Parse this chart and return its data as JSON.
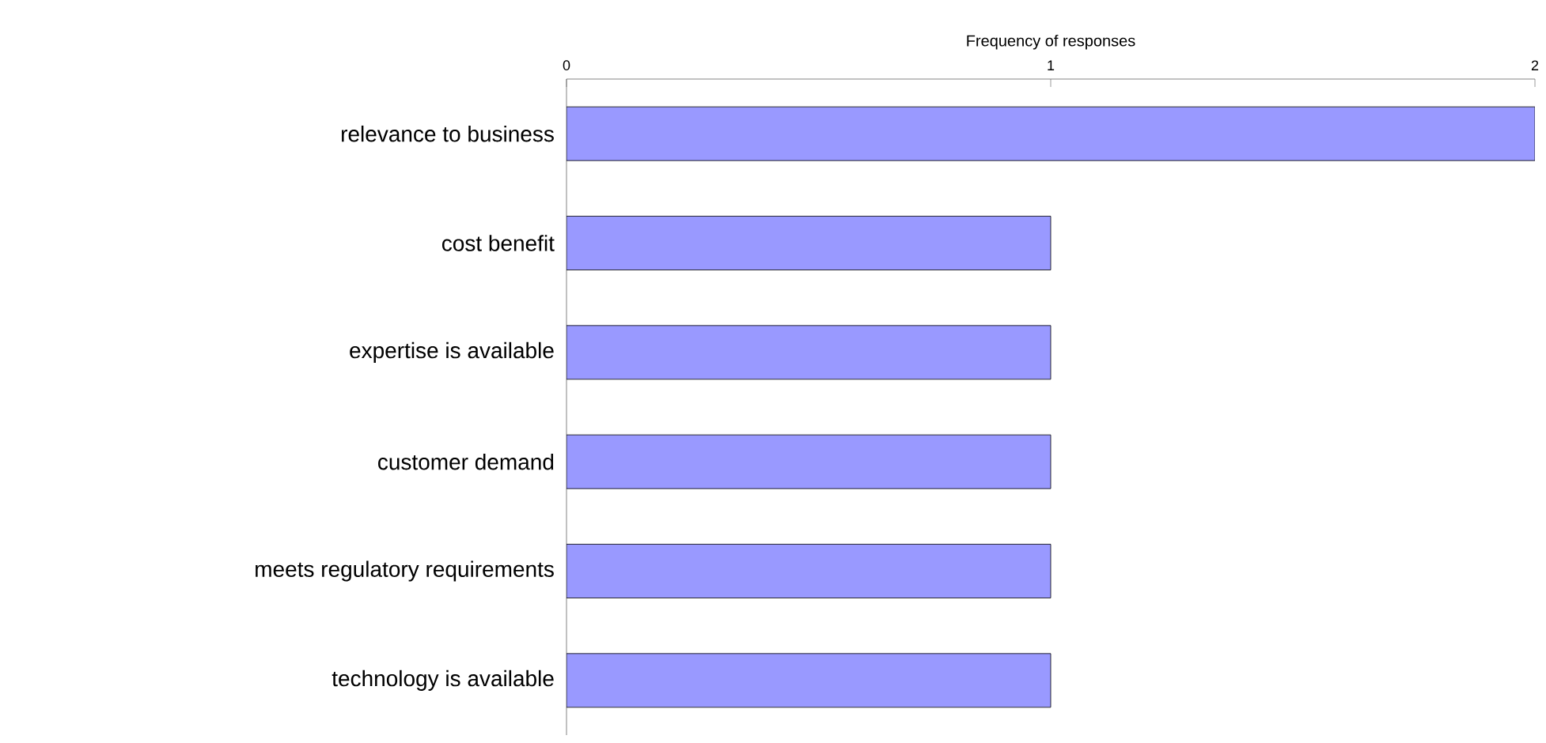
{
  "chart_data": {
    "type": "bar",
    "orientation": "horizontal",
    "xlabel": "Frequency of responses",
    "categories": [
      "relevance to business",
      "cost benefit",
      "expertise is available",
      "customer demand",
      "meets regulatory requirements",
      "technology is available"
    ],
    "values": [
      2,
      1,
      1,
      1,
      1,
      1
    ],
    "color": "#9999ff",
    "xlim": [
      0,
      2
    ],
    "xticks": [
      0,
      1,
      2
    ],
    "grid": false
  }
}
